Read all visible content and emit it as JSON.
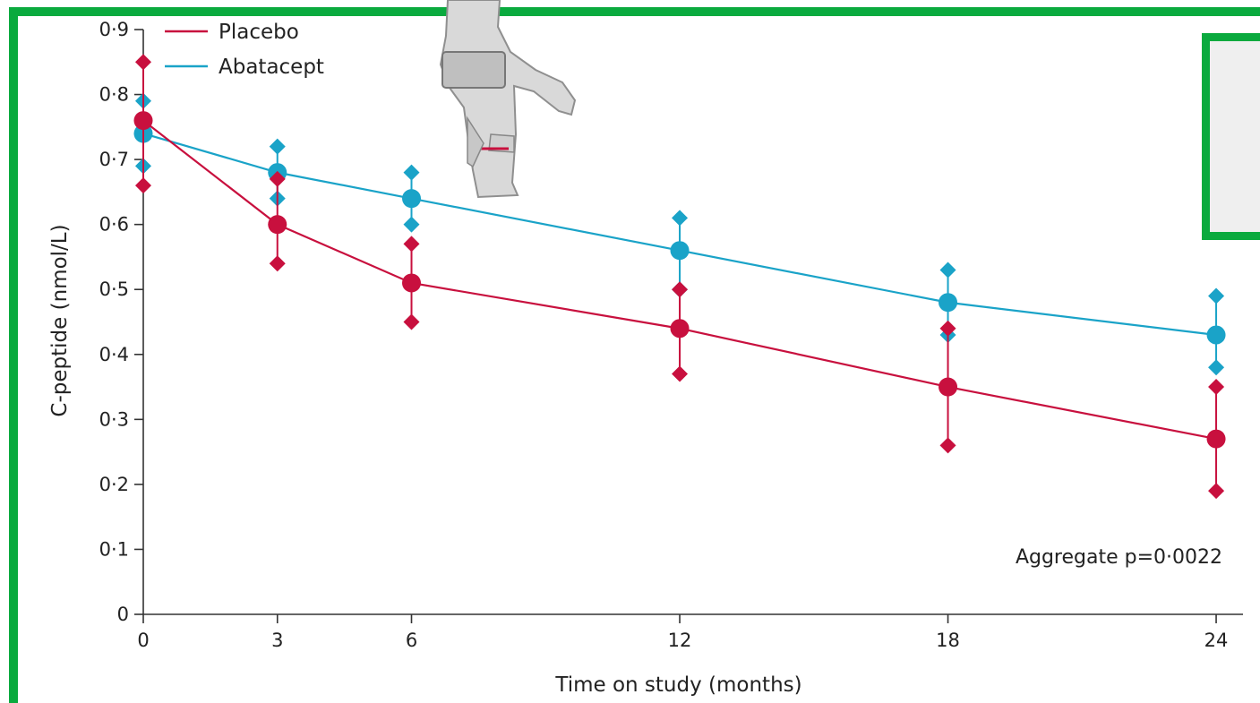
{
  "chart_data": {
    "type": "line",
    "xlabel": "Time on study (months)",
    "ylabel": "C-peptide (nmol/L)",
    "x": [
      0,
      3,
      6,
      12,
      18,
      24
    ],
    "x_tick_labels": [
      "0",
      "3",
      "6",
      "12",
      "18",
      "24"
    ],
    "y_tick_labels": [
      "0",
      "0·1",
      "0·2",
      "0·3",
      "0·4",
      "0·5",
      "0·6",
      "0·7",
      "0·8",
      "0·9"
    ],
    "ylim": [
      0,
      0.9
    ],
    "xlim": [
      0,
      24.6
    ],
    "grid": false,
    "legend_position": "top-left",
    "series": [
      {
        "name": "Placebo",
        "color": "#c8103e",
        "values": [
          0.76,
          0.6,
          0.51,
          0.44,
          0.35,
          0.27
        ],
        "ci_low": [
          0.66,
          0.54,
          0.45,
          0.37,
          0.26,
          0.19
        ],
        "ci_high": [
          0.85,
          0.67,
          0.57,
          0.5,
          0.44,
          0.35
        ]
      },
      {
        "name": "Abatacept",
        "color": "#1aa3c8",
        "values": [
          0.74,
          0.68,
          0.64,
          0.56,
          0.48,
          0.43
        ],
        "ci_low": [
          0.69,
          0.64,
          0.6,
          0.5,
          0.43,
          0.38
        ],
        "ci_high": [
          0.79,
          0.72,
          0.68,
          0.61,
          0.53,
          0.49
        ]
      }
    ],
    "annotation": "Aggregate p=0·0022"
  },
  "colors": {
    "frame": "#0aaa3e"
  },
  "decorations": {
    "overlay_icon": "astronaut-icon"
  }
}
